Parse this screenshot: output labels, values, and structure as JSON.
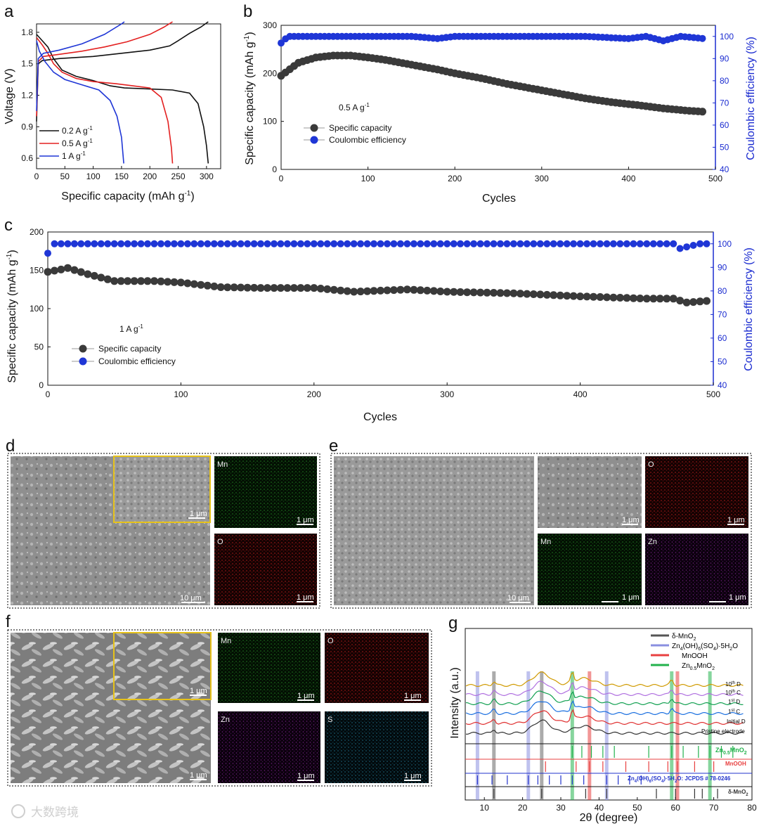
{
  "colors": {
    "black_series": "#111111",
    "red_series": "#e32020",
    "blue_series": "#1f36d6",
    "capacity_marker": "#3a3a3a",
    "ce_marker": "#1f36d6",
    "ce_axis": "#1a2bd0",
    "mn_map": "#0b2a0b",
    "o_map": "#3a0606",
    "zn_map": "#1c0320",
    "s_map": "#05151c",
    "frame_dotted": "#333333",
    "inset_frame": "#e6c21a"
  },
  "watermark": "大数跨境",
  "chart_data": [
    {
      "id": "a",
      "panel_label": "a",
      "type": "line",
      "title": "",
      "xlabel": "Specific capacity (mAh g",
      "xlabel_sup": "-1",
      "xlabel_close": ")",
      "ylabel": "Voltage (V)",
      "xlim": [
        0,
        325
      ],
      "ylim": [
        0.5,
        1.88
      ],
      "xticks": [
        0,
        50,
        100,
        150,
        200,
        250,
        300
      ],
      "yticks": [
        0.6,
        0.9,
        1.2,
        1.5,
        1.8
      ],
      "ytick_labels": [
        "0.6",
        "0.9",
        "1.2",
        "1.5",
        "1.8"
      ],
      "legend": {
        "position": "bottom-left"
      },
      "series": [
        {
          "name": "0.2 A g",
          "sup": "-1",
          "color": "black",
          "discharge": [
            [
              0,
              1.78
            ],
            [
              10,
              1.72
            ],
            [
              20,
              1.66
            ],
            [
              30,
              1.55
            ],
            [
              45,
              1.44
            ],
            [
              70,
              1.38
            ],
            [
              100,
              1.34
            ],
            [
              130,
              1.29
            ],
            [
              155,
              1.27
            ],
            [
              200,
              1.26
            ],
            [
              240,
              1.25
            ],
            [
              270,
              1.22
            ],
            [
              285,
              1.12
            ],
            [
              295,
              0.9
            ],
            [
              300,
              0.72
            ],
            [
              303,
              0.55
            ]
          ],
          "charge": [
            [
              0,
              0.95
            ],
            [
              3,
              1.5
            ],
            [
              10,
              1.53
            ],
            [
              40,
              1.55
            ],
            [
              100,
              1.57
            ],
            [
              150,
              1.6
            ],
            [
              200,
              1.63
            ],
            [
              235,
              1.67
            ],
            [
              250,
              1.72
            ],
            [
              270,
              1.79
            ],
            [
              290,
              1.85
            ],
            [
              303,
              1.9
            ]
          ]
        },
        {
          "name": "0.5 A g",
          "sup": "-1",
          "color": "red",
          "discharge": [
            [
              0,
              1.75
            ],
            [
              10,
              1.68
            ],
            [
              20,
              1.6
            ],
            [
              30,
              1.5
            ],
            [
              45,
              1.42
            ],
            [
              70,
              1.36
            ],
            [
              100,
              1.33
            ],
            [
              140,
              1.31
            ],
            [
              170,
              1.29
            ],
            [
              200,
              1.27
            ],
            [
              220,
              1.18
            ],
            [
              232,
              0.95
            ],
            [
              238,
              0.7
            ],
            [
              240,
              0.55
            ]
          ],
          "charge": [
            [
              0,
              1.0
            ],
            [
              3,
              1.52
            ],
            [
              12,
              1.57
            ],
            [
              40,
              1.59
            ],
            [
              80,
              1.62
            ],
            [
              120,
              1.66
            ],
            [
              160,
              1.71
            ],
            [
              200,
              1.78
            ],
            [
              225,
              1.85
            ],
            [
              240,
              1.9
            ]
          ]
        },
        {
          "name": "1 A g",
          "sup": "-1",
          "color": "blue",
          "discharge": [
            [
              0,
              1.72
            ],
            [
              5,
              1.62
            ],
            [
              15,
              1.52
            ],
            [
              30,
              1.42
            ],
            [
              50,
              1.35
            ],
            [
              80,
              1.3
            ],
            [
              110,
              1.25
            ],
            [
              130,
              1.15
            ],
            [
              142,
              1.0
            ],
            [
              150,
              0.8
            ],
            [
              154,
              0.55
            ]
          ],
          "charge": [
            [
              0,
              1.05
            ],
            [
              3,
              1.55
            ],
            [
              12,
              1.6
            ],
            [
              40,
              1.63
            ],
            [
              80,
              1.69
            ],
            [
              120,
              1.78
            ],
            [
              150,
              1.88
            ],
            [
              155,
              1.9
            ]
          ]
        }
      ]
    },
    {
      "id": "b",
      "panel_label": "b",
      "type": "scatter",
      "xlabel": "Cycles",
      "ylabel": "Specific capacity (mAh g",
      "ylabel_sup": "-1",
      "ylabel_close": ")",
      "y2label": "Coulombic efficiency (%)",
      "xlim": [
        0,
        500
      ],
      "ylim": [
        0,
        300
      ],
      "y2lim": [
        40,
        105
      ],
      "xticks": [
        0,
        100,
        200,
        300,
        400,
        500
      ],
      "yticks": [
        0,
        100,
        200,
        300
      ],
      "y2ticks": [
        40,
        50,
        60,
        70,
        80,
        90,
        100
      ],
      "annotation": "0.5 A g",
      "annotation_sup": "-1",
      "legend": {
        "position": "center-left",
        "items": [
          "Specific capacity",
          "Coulombic efficiency"
        ]
      },
      "capacity_points": [
        [
          0,
          195
        ],
        [
          20,
          222
        ],
        [
          40,
          233
        ],
        [
          60,
          237
        ],
        [
          80,
          237
        ],
        [
          100,
          233
        ],
        [
          120,
          228
        ],
        [
          150,
          218
        ],
        [
          180,
          208
        ],
        [
          200,
          200
        ],
        [
          230,
          190
        ],
        [
          260,
          178
        ],
        [
          290,
          168
        ],
        [
          320,
          158
        ],
        [
          350,
          148
        ],
        [
          380,
          140
        ],
        [
          410,
          134
        ],
        [
          440,
          127
        ],
        [
          470,
          122
        ],
        [
          487,
          120
        ]
      ],
      "ce_points": [
        [
          0,
          97
        ],
        [
          8,
          100
        ],
        [
          50,
          100
        ],
        [
          100,
          100
        ],
        [
          150,
          100
        ],
        [
          180,
          99
        ],
        [
          200,
          100
        ],
        [
          250,
          100
        ],
        [
          300,
          100
        ],
        [
          350,
          100
        ],
        [
          400,
          99
        ],
        [
          420,
          100
        ],
        [
          440,
          98
        ],
        [
          460,
          100
        ],
        [
          487,
          99
        ]
      ]
    },
    {
      "id": "c",
      "panel_label": "c",
      "type": "scatter",
      "xlabel": "Cycles",
      "ylabel": "Specific capacity (mAh g",
      "ylabel_sup": "-1",
      "ylabel_close": ")",
      "y2label": "Coulombic efficiency (%)",
      "xlim": [
        0,
        500
      ],
      "ylim": [
        0,
        200
      ],
      "y2lim": [
        40,
        105
      ],
      "xticks": [
        0,
        100,
        200,
        300,
        400,
        500
      ],
      "yticks": [
        0,
        50,
        100,
        150,
        200
      ],
      "y2ticks": [
        40,
        50,
        60,
        70,
        80,
        90,
        100
      ],
      "annotation": "1 A g",
      "annotation_sup": "-1",
      "legend": {
        "position": "center-left",
        "items": [
          "Specific capacity",
          "Coulombic efficiency"
        ]
      },
      "capacity_points": [
        [
          0,
          148
        ],
        [
          10,
          151
        ],
        [
          15,
          153
        ],
        [
          30,
          145
        ],
        [
          50,
          136
        ],
        [
          80,
          136
        ],
        [
          100,
          134
        ],
        [
          130,
          128
        ],
        [
          160,
          127
        ],
        [
          200,
          127
        ],
        [
          230,
          122
        ],
        [
          270,
          125
        ],
        [
          300,
          122
        ],
        [
          350,
          120
        ],
        [
          400,
          116
        ],
        [
          450,
          113
        ],
        [
          470,
          113
        ],
        [
          480,
          108
        ],
        [
          495,
          110
        ]
      ],
      "ce_points": [
        [
          0,
          96
        ],
        [
          5,
          100
        ],
        [
          50,
          100
        ],
        [
          100,
          100
        ],
        [
          150,
          100
        ],
        [
          200,
          100
        ],
        [
          250,
          100
        ],
        [
          300,
          100
        ],
        [
          350,
          100
        ],
        [
          400,
          100
        ],
        [
          450,
          100
        ],
        [
          470,
          100
        ],
        [
          475,
          98
        ],
        [
          490,
          100
        ],
        [
          500,
          100
        ]
      ]
    },
    {
      "id": "g",
      "panel_label": "g",
      "type": "line",
      "xlabel": "2θ (degree)",
      "ylabel": "Intensity (a.u.)",
      "xlim": [
        5,
        80
      ],
      "xticks": [
        10,
        20,
        30,
        40,
        50,
        60,
        70,
        80
      ],
      "legend": {
        "position": "top-right",
        "items": [
          {
            "name": "δ-MnO",
            "sub": "2",
            "color": "#555555"
          },
          {
            "name": "Zn",
            "full": "Zn4(OH)6(SO4)·5H2O",
            "color": "#8a8fe0"
          },
          {
            "name": "MnOOH",
            "color": "#e84040"
          },
          {
            "name": "Zn",
            "full": "Zn0.5MnO2",
            "color": "#22b24c"
          }
        ]
      },
      "legend_text": {
        "zhs_parts": [
          "Zn",
          "4",
          "(OH)",
          "6",
          "(SO",
          "4",
          ")·5H",
          "2",
          "O"
        ],
        "zmo_parts": [
          "Zn",
          "0.5",
          "MnO",
          "2"
        ]
      },
      "curve_labels": [
        {
          "text": "10",
          "sup": "th",
          "tail": " D",
          "color": "#d09a00"
        },
        {
          "text": "10",
          "sup": "th",
          "tail": " C",
          "color": "#b070e0"
        },
        {
          "text": "1",
          "sup": "st",
          "tail": " D",
          "color": "#11a050"
        },
        {
          "text": "1",
          "sup": "st",
          "tail": " C",
          "color": "#1a6fe0"
        },
        {
          "text": "Initial D",
          "sup": "",
          "tail": "",
          "color": "#e03030"
        },
        {
          "text": "Pristine electrode",
          "sup": "",
          "tail": "",
          "color": "#333333"
        }
      ],
      "reference_labels": [
        {
          "parts": [
            "Zn",
            "0.5",
            "MnO",
            "2"
          ],
          "color": "#22b24c"
        },
        {
          "text": "MnOOH",
          "color": "#e84040"
        },
        {
          "text": "Zn4(OH)6(SO4)·5H2O  JCPDS # 78-0246",
          "parts": [
            "Zn",
            "4",
            "(OH)",
            "6",
            "(SO",
            "4",
            ")·5H",
            "2",
            "O:  JCPDS # 78-0246"
          ],
          "color": "#2233cc"
        },
        {
          "parts": [
            "δ-MnO",
            "2"
          ],
          "color": "#333333"
        }
      ],
      "highlight_peaks": [
        {
          "x": 8.2,
          "color": "#8a8fe0"
        },
        {
          "x": 12.5,
          "color": "#666666"
        },
        {
          "x": 21.5,
          "color": "#8a8fe0"
        },
        {
          "x": 25.0,
          "color": "#666666"
        },
        {
          "x": 33.0,
          "color": "#22b24c"
        },
        {
          "x": 37.5,
          "color": "#e84040"
        },
        {
          "x": 42.0,
          "color": "#8a8fe0"
        },
        {
          "x": 59.0,
          "color": "#22b24c"
        },
        {
          "x": 60.5,
          "color": "#e84040"
        },
        {
          "x": 69.0,
          "color": "#22b24c"
        }
      ]
    }
  ],
  "panels": {
    "d": {
      "label": "d",
      "sem_scale": "10 μm",
      "inset_scale": "1 μm",
      "maps": [
        {
          "el": "Mn",
          "scale": "1 μm"
        },
        {
          "el": "O",
          "scale": "1 μm"
        }
      ]
    },
    "e": {
      "label": "e",
      "sem_scale": "10 μm",
      "inset_scale": "1 μm",
      "maps": [
        {
          "el": "O",
          "scale": "1 μm"
        },
        {
          "el": "Mn",
          "scale": "1 μm"
        },
        {
          "el": "Zn",
          "scale": "1 μm"
        }
      ]
    },
    "f": {
      "label": "f",
      "sem_scale": "1 μm",
      "inset_scale": "1 μm",
      "maps": [
        {
          "el": "Mn",
          "scale": "1 μm"
        },
        {
          "el": "O",
          "scale": "1 μm"
        },
        {
          "el": "Zn",
          "scale": "1 μm"
        },
        {
          "el": "S",
          "scale": "1 μm"
        }
      ]
    }
  }
}
